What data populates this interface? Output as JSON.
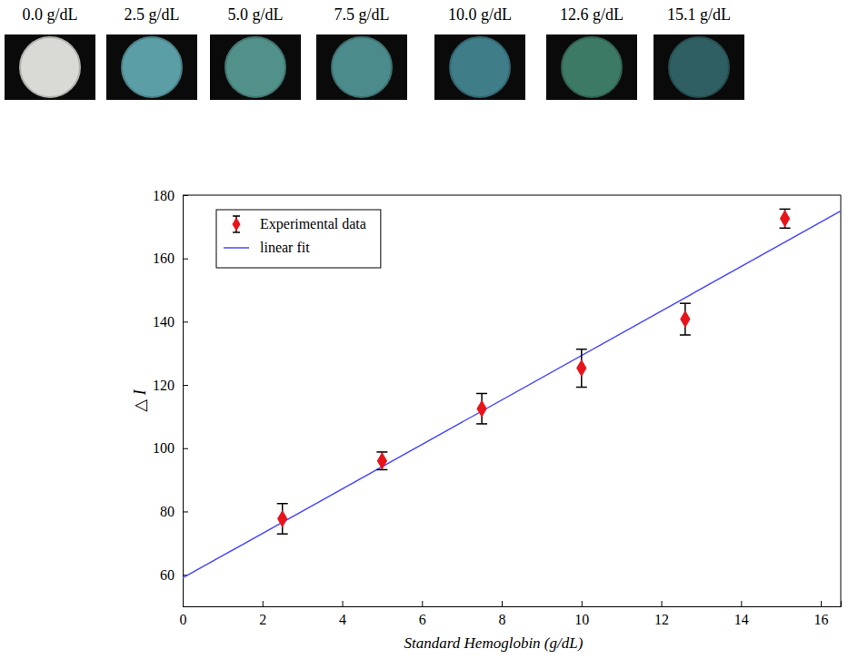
{
  "samples": {
    "labels": [
      "0.0 g/dL",
      "2.5 g/dL",
      "5.0 g/dL",
      "7.5 g/dL",
      "10.0 g/dL",
      "12.6 g/dL",
      "15.1 g/dL"
    ],
    "colors": [
      "#d9d9d5",
      "#5b9ea6",
      "#52908a",
      "#4c8b8c",
      "#3f7d88",
      "#3d7a66",
      "#2f5f62"
    ]
  },
  "chart_data": {
    "type": "scatter",
    "x_label": "Standard Hemoglobin (g/dL)",
    "y_label": "△ I",
    "xlim": [
      0,
      16.5
    ],
    "ylim": [
      50,
      180
    ],
    "xticks": [
      0,
      2,
      4,
      6,
      8,
      10,
      12,
      14,
      16
    ],
    "yticks": [
      60,
      80,
      100,
      120,
      140,
      160,
      180
    ],
    "grid": false,
    "legend": "upper left",
    "series": [
      {
        "name": "Experimental data",
        "type": "scatter",
        "color": "#e8141c",
        "marker": "diamond",
        "x": [
          2.5,
          5.0,
          7.5,
          10.0,
          12.6,
          15.1
        ],
        "values": [
          77.7,
          96.0,
          112.5,
          125.3,
          140.8,
          172.6
        ],
        "errors": [
          4.8,
          2.8,
          4.8,
          6.0,
          5.0,
          3.0
        ]
      },
      {
        "name": "linear fit",
        "type": "line",
        "color": "#4a4aff",
        "line_style": "solid",
        "x": [
          0,
          16.5
        ],
        "values": [
          59,
          175
        ]
      }
    ]
  }
}
